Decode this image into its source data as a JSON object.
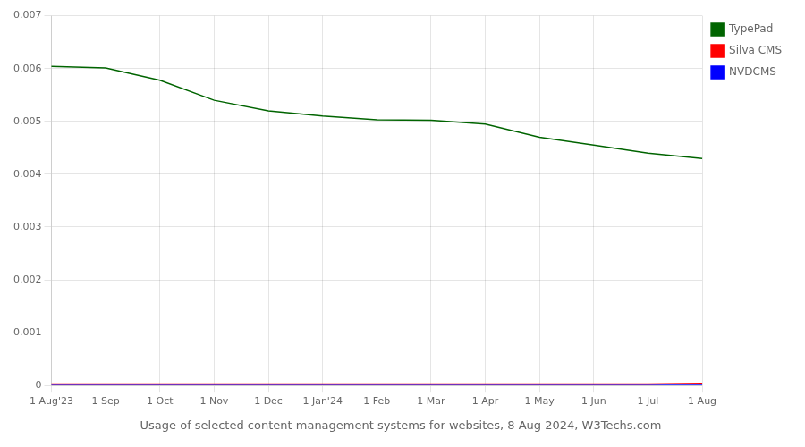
{
  "chart_data": {
    "type": "line",
    "title": "Usage of selected content management systems for websites, 8 Aug 2024, W3Techs.com",
    "categories": [
      "1 Aug'23",
      "1 Sep",
      "1 Oct",
      "1 Nov",
      "1 Dec",
      "1 Jan'24",
      "1 Feb",
      "1 Mar",
      "1 Apr",
      "1 May",
      "1 Jun",
      "1 Jul",
      "1 Aug"
    ],
    "series": [
      {
        "name": "TypePad",
        "color": "#006400",
        "values": [
          0.00604,
          0.00601,
          0.00578,
          0.0054,
          0.0052,
          0.0051,
          0.00503,
          0.00502,
          0.00495,
          0.0047,
          0.00455,
          0.0044,
          0.0043
        ]
      },
      {
        "name": "Silva CMS",
        "color": "#ff0000",
        "values": [
          3e-05,
          3e-05,
          3e-05,
          3e-05,
          3e-05,
          3e-05,
          3e-05,
          3e-05,
          3e-05,
          3e-05,
          3e-05,
          3e-05,
          4e-05
        ]
      },
      {
        "name": "NVDCMS",
        "color": "#0000ff",
        "values": [
          2e-05,
          2e-05,
          2e-05,
          2e-05,
          2e-05,
          2e-05,
          2e-05,
          2e-05,
          2e-05,
          2e-05,
          2e-05,
          2e-05,
          2e-05
        ]
      }
    ],
    "ylim": [
      0,
      0.007
    ],
    "yticks": [
      0,
      0.001,
      0.002,
      0.003,
      0.004,
      0.005,
      0.006,
      0.007
    ],
    "grid": true,
    "legend": "right"
  }
}
